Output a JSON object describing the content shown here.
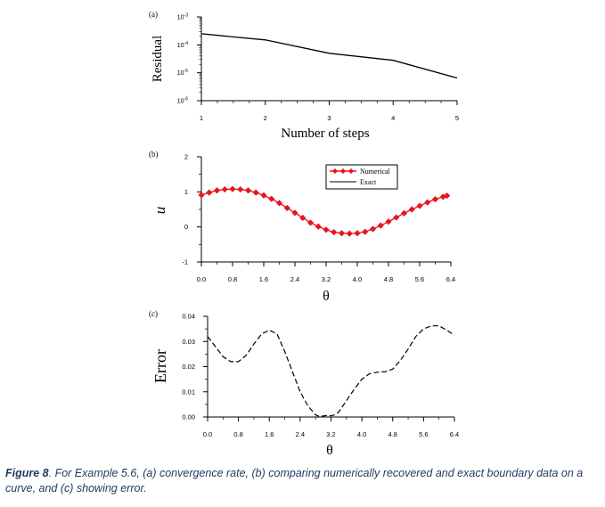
{
  "caption": {
    "label": "Figure 8",
    "text": ". For Example 5.6, (a) convergence rate, (b) comparing numerically recovered and exact boundary data on a curve, and (c) showing error."
  },
  "chart_data": [
    {
      "panel": "(a)",
      "type": "line",
      "xlabel": "Number of steps",
      "ylabel": "Residual",
      "xlim": [
        1,
        5
      ],
      "ylim_log10": [
        -6,
        -3
      ],
      "y_scale": "log",
      "x_ticks": [
        "1",
        "2",
        "3",
        "4",
        "5"
      ],
      "y_ticks": [
        {
          "base": "10",
          "exp": "-3",
          "value": 0.001
        },
        {
          "base": "10",
          "exp": "-4",
          "value": 0.0001
        },
        {
          "base": "10",
          "exp": "-5",
          "value": 1e-05
        },
        {
          "base": "10",
          "exp": "-6",
          "value": 1e-06
        }
      ],
      "x": [
        1,
        2,
        3,
        4,
        5
      ],
      "values": [
        0.00025,
        0.00015,
        5e-05,
        2.8e-05,
        6.5e-06
      ],
      "color": "#000000"
    },
    {
      "panel": "(b)",
      "type": "line",
      "xlabel": "θ",
      "ylabel": "u",
      "xlim": [
        0,
        6.4
      ],
      "ylim": [
        -1,
        2
      ],
      "x_ticks": [
        "0.0",
        "0.8",
        "1.6",
        "2.4",
        "3.2",
        "4.0",
        "4.8",
        "5.6",
        "6.4"
      ],
      "y_ticks": [
        "2",
        "1",
        "0",
        "-1"
      ],
      "legend_position": "top-right",
      "series": [
        {
          "name": "Numerical",
          "style": "diamond markers",
          "color": "#e8141a",
          "x": [
            0,
            0.2,
            0.4,
            0.6,
            0.8,
            1.0,
            1.2,
            1.4,
            1.6,
            1.8,
            2.0,
            2.2,
            2.4,
            2.6,
            2.8,
            3.0,
            3.2,
            3.4,
            3.6,
            3.8,
            4.0,
            4.2,
            4.4,
            4.6,
            4.8,
            5.0,
            5.2,
            5.4,
            5.6,
            5.8,
            6.0,
            6.2,
            6.3
          ],
          "values": [
            0.91,
            0.98,
            1.04,
            1.07,
            1.08,
            1.07,
            1.04,
            0.98,
            0.9,
            0.8,
            0.68,
            0.54,
            0.4,
            0.26,
            0.12,
            0.01,
            -0.08,
            -0.15,
            -0.18,
            -0.19,
            -0.18,
            -0.14,
            -0.06,
            0.04,
            0.15,
            0.27,
            0.39,
            0.5,
            0.6,
            0.7,
            0.79,
            0.86,
            0.89
          ]
        },
        {
          "name": "Exact",
          "style": "solid",
          "color": "#000000",
          "x": [
            0,
            0.2,
            0.4,
            0.6,
            0.8,
            1.0,
            1.2,
            1.4,
            1.6,
            1.8,
            2.0,
            2.2,
            2.4,
            2.6,
            2.8,
            3.0,
            3.2,
            3.4,
            3.6,
            3.8,
            4.0,
            4.2,
            4.4,
            4.6,
            4.8,
            5.0,
            5.2,
            5.4,
            5.6,
            5.8,
            6.0,
            6.2,
            6.3
          ],
          "values": [
            0.91,
            0.98,
            1.04,
            1.07,
            1.08,
            1.07,
            1.04,
            0.98,
            0.9,
            0.8,
            0.68,
            0.54,
            0.4,
            0.26,
            0.12,
            0.01,
            -0.08,
            -0.15,
            -0.18,
            -0.19,
            -0.18,
            -0.14,
            -0.06,
            0.04,
            0.15,
            0.27,
            0.39,
            0.5,
            0.6,
            0.7,
            0.79,
            0.86,
            0.89
          ]
        }
      ]
    },
    {
      "panel": "(c)",
      "type": "line",
      "xlabel": "θ",
      "ylabel": "Error",
      "xlim": [
        0,
        6.4
      ],
      "ylim": [
        0,
        0.04
      ],
      "x_ticks": [
        "0.0",
        "0.8",
        "1.6",
        "2.4",
        "3.2",
        "4.0",
        "4.8",
        "5.6",
        "6.4"
      ],
      "y_ticks": [
        "0.04",
        "0.03",
        "0.02",
        "0.01",
        "0.00"
      ],
      "line_style": "dashed",
      "color": "#000000",
      "x": [
        0,
        0.2,
        0.4,
        0.6,
        0.8,
        1.0,
        1.2,
        1.4,
        1.6,
        1.8,
        2.0,
        2.2,
        2.4,
        2.6,
        2.8,
        2.9,
        3.0,
        3.1,
        3.2,
        3.3,
        3.4,
        3.6,
        3.8,
        4.0,
        4.2,
        4.4,
        4.6,
        4.8,
        5.0,
        5.2,
        5.4,
        5.6,
        5.8,
        6.0,
        6.2,
        6.4
      ],
      "values": [
        0.032,
        0.028,
        0.024,
        0.022,
        0.022,
        0.0245,
        0.029,
        0.033,
        0.0345,
        0.033,
        0.026,
        0.018,
        0.01,
        0.0045,
        0.0008,
        0.0002,
        0.0004,
        0.0006,
        0.0005,
        0.0008,
        0.002,
        0.0065,
        0.011,
        0.015,
        0.0172,
        0.0178,
        0.018,
        0.019,
        0.0225,
        0.027,
        0.032,
        0.035,
        0.0362,
        0.0362,
        0.0345,
        0.0325
      ]
    }
  ]
}
